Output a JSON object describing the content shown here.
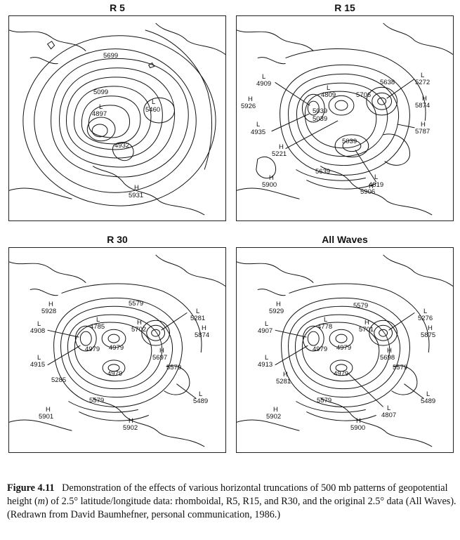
{
  "panels": [
    {
      "title": "R 5",
      "labels": [
        "5699",
        "5099",
        "L",
        "4897",
        "L",
        "5460",
        "4932",
        "H",
        "5931"
      ]
    },
    {
      "title": "R 15",
      "labels": [
        "L",
        "4909",
        "H",
        "5926",
        "L",
        "4809",
        "5706",
        "5638",
        "L",
        "5272",
        "H",
        "5874",
        "5039",
        "5039",
        "L",
        "4935",
        "H",
        "5787",
        "H",
        "5221",
        "5039",
        "5639",
        "L",
        "4819",
        "H",
        "5900",
        "H",
        "5906"
      ]
    },
    {
      "title": "R 30",
      "labels": [
        "H",
        "5928",
        "5579",
        "L",
        "4785",
        "H",
        "5702",
        "L",
        "5281",
        "L",
        "4908",
        "H",
        "5874",
        "4979",
        "4979",
        "H",
        "5697",
        "L",
        "4915",
        "5579",
        "5285",
        "4979",
        "L",
        "5489",
        "5579",
        "H",
        "5901",
        "H",
        "5902"
      ]
    },
    {
      "title": "All Waves",
      "labels": [
        "H",
        "5929",
        "5579",
        "L",
        "4778",
        "H",
        "5701",
        "L",
        "5276",
        "L",
        "4907",
        "H",
        "5875",
        "4979",
        "4979",
        "H",
        "5698",
        "L",
        "4913",
        "5579",
        "H",
        "5281",
        "4979",
        "L",
        "5489",
        "5579",
        "L",
        "4807",
        "H",
        "5902",
        "H",
        "5900"
      ]
    }
  ],
  "caption": {
    "figure_label": "Figure 4.11",
    "text_1": "Demonstration of the effects of various horizontal truncations of 500 mb patterns of geopotential height (",
    "text_m": "m",
    "text_2": ") of 2.5° latitude/longitude data: rhomboidal, R5, R15, and R30, and the original 2.5° data (All Waves). (Redrawn from David Baumhefner, personal communication, 1986.)"
  }
}
